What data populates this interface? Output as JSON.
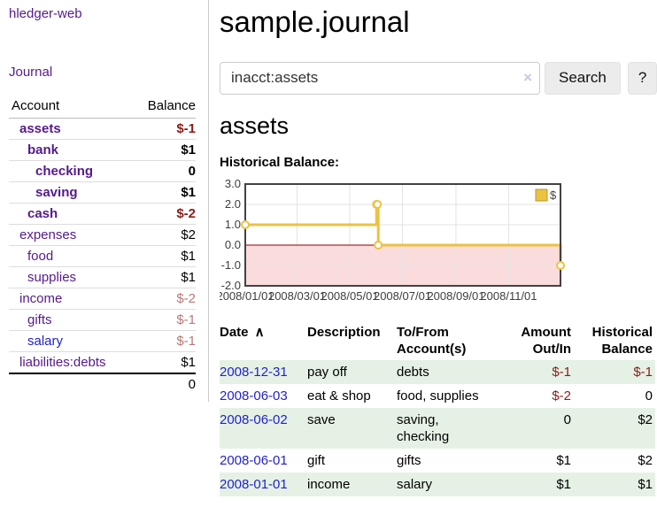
{
  "brand": "hledger-web",
  "nav": {
    "journal": "Journal"
  },
  "colors": {
    "brand_link": "#551a8b",
    "unvisited_link": "#2222cc",
    "negative": "#8c1a1a",
    "negative_muted": "#b87878",
    "row_shade": "#e5f1e4",
    "chart_series": "#EDC240",
    "chart_negative_region": "#fbdcdc",
    "chart_zero_line": "#8b0000"
  },
  "sidebar": {
    "columns": {
      "account": "Account",
      "balance": "Balance"
    },
    "accounts": [
      {
        "name": "assets",
        "indent": 0,
        "bold": true,
        "balance": "$-1",
        "balance_style": "neg"
      },
      {
        "name": "bank",
        "indent": 1,
        "bold": true,
        "balance": "$1",
        "balance_style": "pos"
      },
      {
        "name": "checking",
        "indent": 2,
        "bold": true,
        "balance": "0",
        "balance_style": "pos"
      },
      {
        "name": "saving",
        "indent": 2,
        "bold": true,
        "balance": "$1",
        "balance_style": "pos"
      },
      {
        "name": "cash",
        "indent": 1,
        "bold": true,
        "balance": "$-2",
        "balance_style": "neg"
      },
      {
        "name": "expenses",
        "indent": 0,
        "bold": false,
        "balance": "$2",
        "balance_style": "pos"
      },
      {
        "name": "food",
        "indent": 1,
        "bold": false,
        "balance": "$1",
        "balance_style": "pos"
      },
      {
        "name": "supplies",
        "indent": 1,
        "bold": false,
        "balance": "$1",
        "balance_style": "pos"
      },
      {
        "name": "income",
        "indent": 0,
        "bold": false,
        "balance": "$-2",
        "balance_style": "neg-muted"
      },
      {
        "name": "gifts",
        "indent": 1,
        "bold": false,
        "balance": "$-1",
        "balance_style": "neg-muted"
      },
      {
        "name": "salary",
        "indent": 1,
        "bold": false,
        "balance": "$-1",
        "balance_style": "neg-muted",
        "link_style": "unvisited"
      },
      {
        "name": "liabilities:debts",
        "indent": 0,
        "bold": false,
        "balance": "$1",
        "balance_style": "pos"
      }
    ],
    "total": "0"
  },
  "header": {
    "title": "sample.journal"
  },
  "search": {
    "value": "inacct:assets",
    "clear_label": "×",
    "submit_label": "Search",
    "help_label": "?"
  },
  "account_page": {
    "heading": "assets",
    "chart_label": "Historical Balance:"
  },
  "chart_data": {
    "type": "line",
    "step": true,
    "title": "Historical Balance:",
    "series": [
      {
        "name": "$",
        "color": "#EDC240",
        "points": [
          {
            "date": "2008-01-01",
            "value": 1
          },
          {
            "date": "2008-06-01",
            "value": 2
          },
          {
            "date": "2008-06-02",
            "value": 2
          },
          {
            "date": "2008-06-03",
            "value": 0
          },
          {
            "date": "2008-12-31",
            "value": -1
          }
        ]
      }
    ],
    "ylim": [
      -2.0,
      3.0
    ],
    "yticks": [
      "3.0",
      "2.0",
      "1.0",
      "0.0",
      "-1.0",
      "-2.0"
    ],
    "xrange": [
      "2008-01-01",
      "2008-12-31"
    ],
    "xticks": [
      {
        "label": "2008/01/01",
        "date": "2008-01-01"
      },
      {
        "label": "2008/03/01",
        "date": "2008-03-01"
      },
      {
        "label": "2008/05/01",
        "date": "2008-05-01"
      },
      {
        "label": "2008/07/01",
        "date": "2008-07-01"
      },
      {
        "label": "2008/09/01",
        "date": "2008-09-01"
      },
      {
        "label": "2008/11/01",
        "date": "2008-11-01"
      }
    ],
    "grid": true,
    "legend_position": "top-right",
    "negative_fill": "#fbdcdc",
    "zero_line_color": "#8b0000",
    "legend": "$"
  },
  "register": {
    "sort_icon": "∧",
    "columns": [
      {
        "key": "date",
        "lines": [
          "Date"
        ],
        "align": "left",
        "sortable": true
      },
      {
        "key": "description",
        "lines": [
          "Description"
        ],
        "align": "left"
      },
      {
        "key": "accounts",
        "lines": [
          "To/From",
          "Account(s)"
        ],
        "align": "left"
      },
      {
        "key": "amount",
        "lines": [
          "Amount",
          "Out/In"
        ],
        "align": "right"
      },
      {
        "key": "balance",
        "lines": [
          "Historical",
          "Balance"
        ],
        "align": "right"
      }
    ],
    "rows": [
      {
        "date": "2008-12-31",
        "description": "pay off",
        "accounts": [
          "debts"
        ],
        "amount": "$-1",
        "amount_style": "neg",
        "balance": "$-1",
        "balance_style": "neg",
        "shaded": true
      },
      {
        "date": "2008-06-03",
        "description": "eat & shop",
        "accounts": [
          "food, supplies"
        ],
        "amount": "$-2",
        "amount_style": "neg",
        "balance": "0",
        "balance_style": "pos",
        "shaded": false
      },
      {
        "date": "2008-06-02",
        "description": "save",
        "accounts": [
          "saving,",
          "checking"
        ],
        "amount": "0",
        "amount_style": "pos",
        "balance": "$2",
        "balance_style": "pos",
        "shaded": true
      },
      {
        "date": "2008-06-01",
        "description": "gift",
        "accounts": [
          "gifts"
        ],
        "amount": "$1",
        "amount_style": "pos",
        "balance": "$2",
        "balance_style": "pos",
        "shaded": false
      },
      {
        "date": "2008-01-01",
        "description": "income",
        "accounts": [
          "salary"
        ],
        "amount": "$1",
        "amount_style": "pos",
        "balance": "$1",
        "balance_style": "pos",
        "shaded": true
      }
    ]
  }
}
